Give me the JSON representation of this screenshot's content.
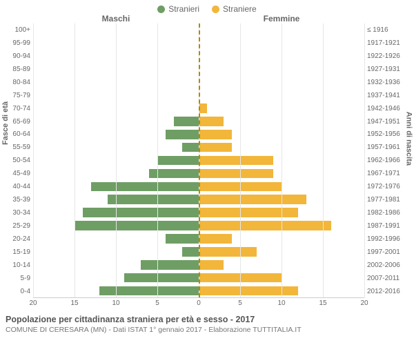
{
  "legend": {
    "male_label": "Stranieri",
    "female_label": "Straniere"
  },
  "headers": {
    "left": "Maschi",
    "right": "Femmine"
  },
  "axis_titles": {
    "left": "Fasce di età",
    "right": "Anni di nascita"
  },
  "colors": {
    "male": "#6f9e65",
    "female": "#f2b63b",
    "grid": "#e6e6e6",
    "center_dash": "#b5860b",
    "text": "#666666",
    "background": "#ffffff"
  },
  "chart": {
    "type": "population-pyramid",
    "xlim": 20,
    "xtick_step": 5,
    "xticks": [
      20,
      15,
      10,
      5,
      0,
      5,
      10,
      15,
      20
    ],
    "bar_height_pct": 72,
    "label_fontsize": 10,
    "header_fontsize": 12,
    "axis_title_fontsize": 11
  },
  "rows": [
    {
      "age": "100+",
      "birth": "≤ 1916",
      "m": 0,
      "f": 0
    },
    {
      "age": "95-99",
      "birth": "1917-1921",
      "m": 0,
      "f": 0
    },
    {
      "age": "90-94",
      "birth": "1922-1926",
      "m": 0,
      "f": 0
    },
    {
      "age": "85-89",
      "birth": "1927-1931",
      "m": 0,
      "f": 0
    },
    {
      "age": "80-84",
      "birth": "1932-1936",
      "m": 0,
      "f": 0
    },
    {
      "age": "75-79",
      "birth": "1937-1941",
      "m": 0,
      "f": 0
    },
    {
      "age": "70-74",
      "birth": "1942-1946",
      "m": 0,
      "f": 1
    },
    {
      "age": "65-69",
      "birth": "1947-1951",
      "m": 3,
      "f": 3
    },
    {
      "age": "60-64",
      "birth": "1952-1956",
      "m": 4,
      "f": 4
    },
    {
      "age": "55-59",
      "birth": "1957-1961",
      "m": 2,
      "f": 4
    },
    {
      "age": "50-54",
      "birth": "1962-1966",
      "m": 5,
      "f": 9
    },
    {
      "age": "45-49",
      "birth": "1967-1971",
      "m": 6,
      "f": 9
    },
    {
      "age": "40-44",
      "birth": "1972-1976",
      "m": 13,
      "f": 10
    },
    {
      "age": "35-39",
      "birth": "1977-1981",
      "m": 11,
      "f": 13
    },
    {
      "age": "30-34",
      "birth": "1982-1986",
      "m": 14,
      "f": 12
    },
    {
      "age": "25-29",
      "birth": "1987-1991",
      "m": 15,
      "f": 16
    },
    {
      "age": "20-24",
      "birth": "1992-1996",
      "m": 4,
      "f": 4
    },
    {
      "age": "15-19",
      "birth": "1997-2001",
      "m": 2,
      "f": 7
    },
    {
      "age": "10-14",
      "birth": "2002-2006",
      "m": 7,
      "f": 3
    },
    {
      "age": "5-9",
      "birth": "2007-2011",
      "m": 9,
      "f": 10
    },
    {
      "age": "0-4",
      "birth": "2012-2016",
      "m": 12,
      "f": 12
    }
  ],
  "caption": {
    "title": "Popolazione per cittadinanza straniera per età e sesso - 2017",
    "subtitle": "COMUNE DI CERESARA (MN) - Dati ISTAT 1° gennaio 2017 - Elaborazione TUTTITALIA.IT"
  }
}
